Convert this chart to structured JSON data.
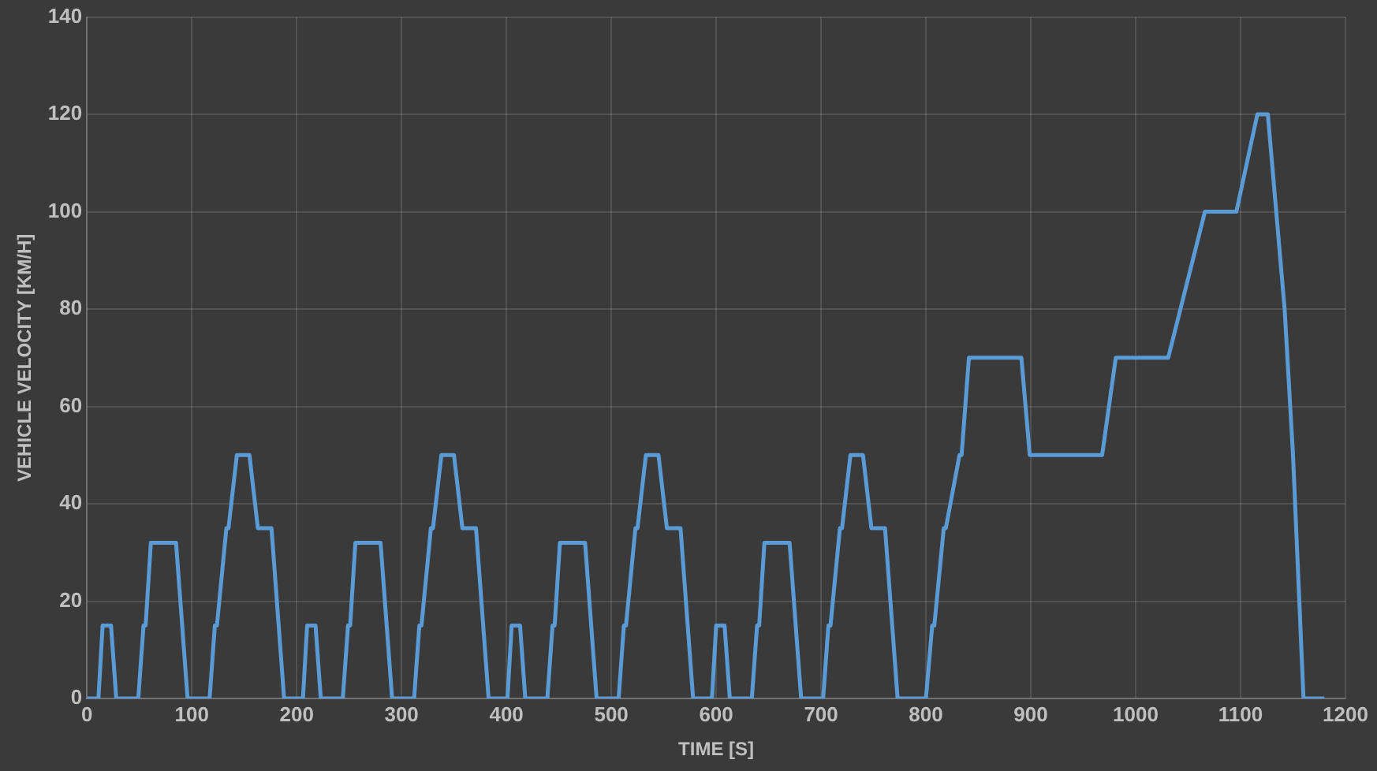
{
  "chart_data": {
    "type": "line",
    "xlabel": "TIME [S]",
    "ylabel": "VEHICLE VELOCITY [KM/H]",
    "xlim": [
      0,
      1200
    ],
    "xticks": [
      0,
      100,
      200,
      300,
      400,
      500,
      600,
      700,
      800,
      900,
      1000,
      1100,
      1200
    ],
    "ylim": [
      0,
      140
    ],
    "yticks": [
      0,
      20,
      40,
      60,
      80,
      100,
      120,
      140
    ],
    "grid": true,
    "legend": false,
    "marker": "none",
    "line_style": "solid",
    "series": [
      {
        "color": "#5b9bd5",
        "x": [
          0,
          11,
          15,
          23,
          28,
          49,
          54,
          56,
          61,
          85,
          96,
          117,
          122,
          124,
          133,
          135,
          143,
          155,
          163,
          176,
          188,
          195,
          206,
          210,
          218,
          223,
          244,
          249,
          251,
          256,
          280,
          291,
          312,
          317,
          319,
          328,
          330,
          338,
          350,
          358,
          371,
          383,
          390,
          401,
          405,
          413,
          418,
          439,
          444,
          446,
          451,
          475,
          486,
          507,
          512,
          514,
          523,
          525,
          533,
          545,
          553,
          566,
          578,
          585,
          596,
          600,
          608,
          613,
          634,
          639,
          641,
          646,
          670,
          681,
          702,
          707,
          709,
          718,
          720,
          728,
          740,
          748,
          761,
          773,
          780,
          800,
          806,
          808,
          817,
          819,
          832,
          834,
          841,
          891,
          899,
          968,
          981,
          1031,
          1066,
          1096,
          1116,
          1126,
          1142,
          1150,
          1160,
          1180
        ],
        "values": [
          0,
          0,
          15,
          15,
          0,
          0,
          15,
          15,
          32,
          32,
          0,
          0,
          15,
          15,
          35,
          35,
          50,
          50,
          35,
          35,
          0,
          0,
          0,
          15,
          15,
          0,
          0,
          15,
          15,
          32,
          32,
          0,
          0,
          15,
          15,
          35,
          35,
          50,
          50,
          35,
          35,
          0,
          0,
          0,
          15,
          15,
          0,
          0,
          15,
          15,
          32,
          32,
          0,
          0,
          15,
          15,
          35,
          35,
          50,
          50,
          35,
          35,
          0,
          0,
          0,
          15,
          15,
          0,
          0,
          15,
          15,
          32,
          32,
          0,
          0,
          15,
          15,
          35,
          35,
          50,
          50,
          35,
          35,
          0,
          0,
          0,
          15,
          15,
          35,
          35,
          50,
          50,
          70,
          70,
          50,
          50,
          70,
          70,
          100,
          100,
          120,
          120,
          80,
          50,
          0,
          0
        ]
      }
    ]
  }
}
